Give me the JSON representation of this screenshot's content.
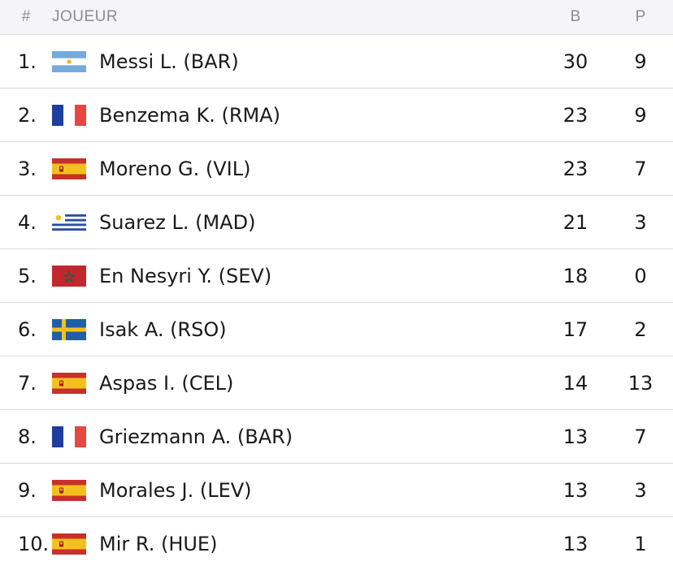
{
  "header": {
    "rank": "#",
    "player": "JOUEUR",
    "goals": "B",
    "assists": "P"
  },
  "rows": [
    {
      "rank": "1.",
      "name": "Messi L. (BAR)",
      "goals": "30",
      "assists": "9",
      "flag": "argentina-flag-icon"
    },
    {
      "rank": "2.",
      "name": "Benzema K. (RMA)",
      "goals": "23",
      "assists": "9",
      "flag": "france-flag-icon"
    },
    {
      "rank": "3.",
      "name": "Moreno G. (VIL)",
      "goals": "23",
      "assists": "7",
      "flag": "spain-flag-icon"
    },
    {
      "rank": "4.",
      "name": "Suarez L. (MAD)",
      "goals": "21",
      "assists": "3",
      "flag": "uruguay-flag-icon"
    },
    {
      "rank": "5.",
      "name": "En Nesyri Y. (SEV)",
      "goals": "18",
      "assists": "0",
      "flag": "morocco-flag-icon"
    },
    {
      "rank": "6.",
      "name": "Isak A. (RSO)",
      "goals": "17",
      "assists": "2",
      "flag": "sweden-flag-icon"
    },
    {
      "rank": "7.",
      "name": "Aspas I. (CEL)",
      "goals": "14",
      "assists": "13",
      "flag": "spain-flag-icon"
    },
    {
      "rank": "8.",
      "name": "Griezmann A. (BAR)",
      "goals": "13",
      "assists": "7",
      "flag": "france-flag-icon"
    },
    {
      "rank": "9.",
      "name": "Morales J. (LEV)",
      "goals": "13",
      "assists": "3",
      "flag": "spain-flag-icon"
    },
    {
      "rank": "10.",
      "name": "Mir R. (HUE)",
      "goals": "13",
      "assists": "1",
      "flag": "spain-flag-icon"
    }
  ],
  "colors": {
    "header_bg": "#f5f5f7",
    "divider": "#dadade",
    "header_text": "#8c8c91"
  }
}
